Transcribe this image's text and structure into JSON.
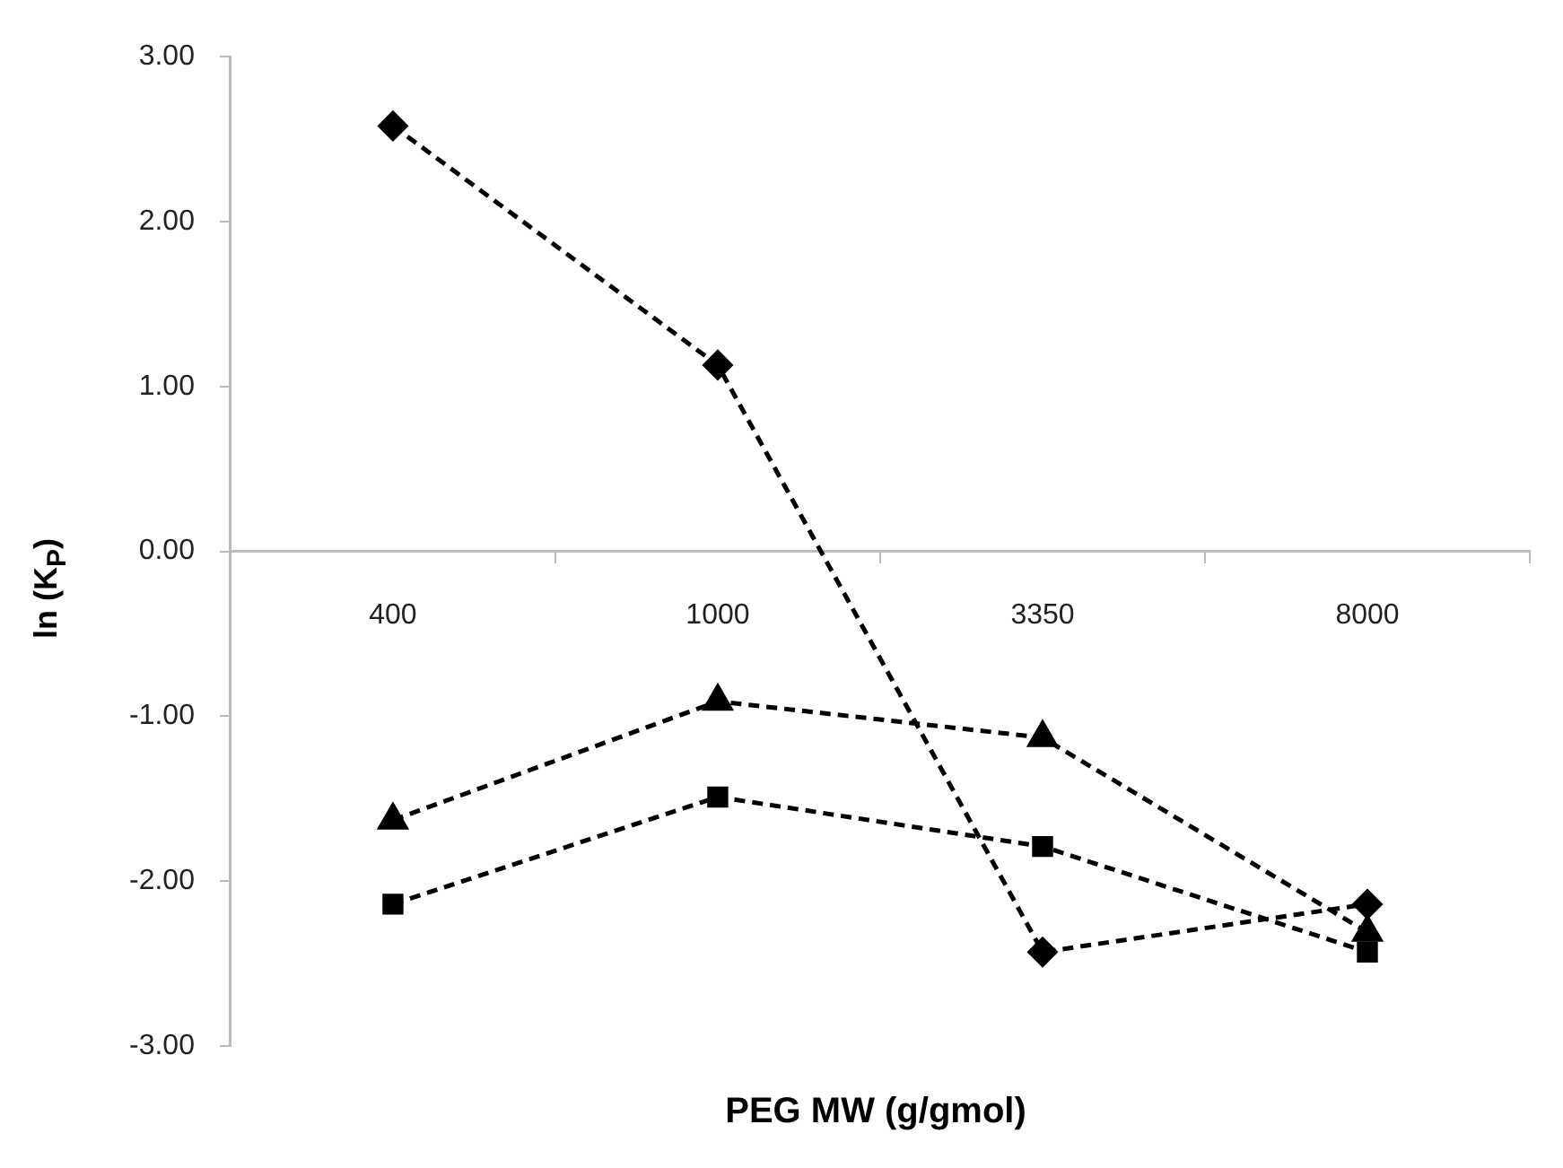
{
  "chart_data": {
    "type": "line",
    "xlabel": "PEG MW (g/gmol)",
    "ylabel": "ln (K$_{P}$)",
    "categories": [
      "400",
      "1000",
      "3350",
      "8000"
    ],
    "ylim": [
      -3,
      3
    ],
    "yticks": [
      {
        "value": -3,
        "label": "-3.00"
      },
      {
        "value": -2,
        "label": "-2.00"
      },
      {
        "value": -1,
        "label": "-1.00"
      },
      {
        "value": 0,
        "label": "0.00"
      },
      {
        "value": 1,
        "label": "1.00"
      },
      {
        "value": 2,
        "label": "2.00"
      },
      {
        "value": 3,
        "label": "3.00"
      }
    ],
    "grid": false,
    "legend": false,
    "line_style": "dashed",
    "series": [
      {
        "color": "#000000",
        "marker": "diamond",
        "values": [
          2.58,
          1.13,
          -2.43,
          -2.14
        ]
      },
      {
        "color": "#000000",
        "marker": "triangle",
        "values": [
          -1.63,
          -0.91,
          -1.13,
          -2.31
        ]
      },
      {
        "color": "#000000",
        "marker": "square",
        "values": [
          -2.14,
          -1.49,
          -1.79,
          -2.43
        ]
      }
    ]
  }
}
